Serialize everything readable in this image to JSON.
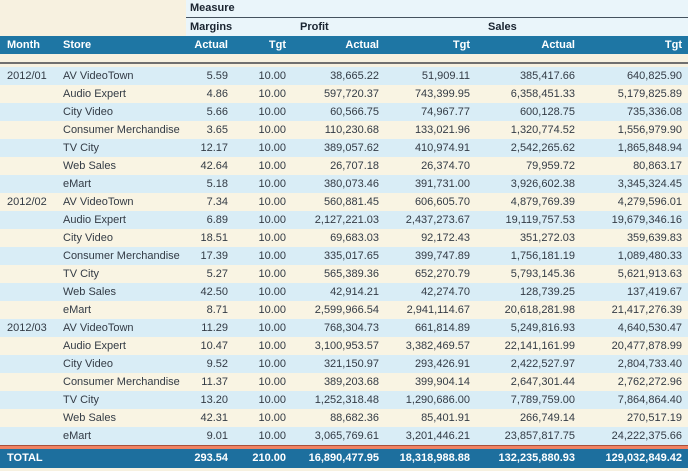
{
  "table": {
    "measure_label": "Measure",
    "group_headers": [
      "Margins",
      "Profit",
      "Sales"
    ],
    "column_headers": [
      "Month",
      "Store",
      "Actual",
      "Tgt",
      "Actual",
      "Tgt",
      "Actual",
      "Tgt"
    ],
    "rows": [
      {
        "month": "2012/01",
        "store": "AV VideoTown",
        "values": [
          "5.59",
          "10.00",
          "38,665.22",
          "51,909.11",
          "385,417.66",
          "640,825.90"
        ]
      },
      {
        "month": "",
        "store": "Audio Expert",
        "values": [
          "4.86",
          "10.00",
          "597,720.37",
          "743,399.95",
          "6,358,451.33",
          "5,179,825.89"
        ]
      },
      {
        "month": "",
        "store": "City Video",
        "values": [
          "5.66",
          "10.00",
          "60,566.75",
          "74,967.77",
          "600,128.75",
          "735,336.08"
        ]
      },
      {
        "month": "",
        "store": "Consumer Merchandise",
        "values": [
          "3.65",
          "10.00",
          "110,230.68",
          "133,021.96",
          "1,320,774.52",
          "1,556,979.90"
        ]
      },
      {
        "month": "",
        "store": "TV City",
        "values": [
          "12.17",
          "10.00",
          "389,057.62",
          "410,974.91",
          "2,542,265.62",
          "1,865,848.94"
        ]
      },
      {
        "month": "",
        "store": "Web Sales",
        "values": [
          "42.64",
          "10.00",
          "26,707.18",
          "26,374.70",
          "79,959.72",
          "80,863.17"
        ]
      },
      {
        "month": "",
        "store": "eMart",
        "values": [
          "5.18",
          "10.00",
          "380,073.46",
          "391,731.00",
          "3,926,602.38",
          "3,345,324.45"
        ]
      },
      {
        "month": "2012/02",
        "store": "AV VideoTown",
        "values": [
          "7.34",
          "10.00",
          "560,881.45",
          "606,605.70",
          "4,879,769.39",
          "4,279,596.01"
        ]
      },
      {
        "month": "",
        "store": "Audio Expert",
        "values": [
          "6.89",
          "10.00",
          "2,127,221.03",
          "2,437,273.67",
          "19,119,757.53",
          "19,679,346.16"
        ]
      },
      {
        "month": "",
        "store": "City Video",
        "values": [
          "18.51",
          "10.00",
          "69,683.03",
          "92,172.43",
          "351,272.03",
          "359,639.83"
        ]
      },
      {
        "month": "",
        "store": "Consumer Merchandise",
        "values": [
          "17.39",
          "10.00",
          "335,017.65",
          "399,747.89",
          "1,756,181.19",
          "1,089,480.33"
        ]
      },
      {
        "month": "",
        "store": "TV City",
        "values": [
          "5.27",
          "10.00",
          "565,389.36",
          "652,270.79",
          "5,793,145.36",
          "5,621,913.63"
        ]
      },
      {
        "month": "",
        "store": "Web Sales",
        "values": [
          "42.50",
          "10.00",
          "42,914.21",
          "42,274.70",
          "128,739.25",
          "137,419.67"
        ]
      },
      {
        "month": "",
        "store": "eMart",
        "values": [
          "8.71",
          "10.00",
          "2,599,966.54",
          "2,941,114.67",
          "20,618,281.98",
          "21,417,276.39"
        ]
      },
      {
        "month": "2012/03",
        "store": "AV VideoTown",
        "values": [
          "11.29",
          "10.00",
          "768,304.73",
          "661,814.89",
          "5,249,816.93",
          "4,640,530.47"
        ]
      },
      {
        "month": "",
        "store": "Audio Expert",
        "values": [
          "10.47",
          "10.00",
          "3,100,953.57",
          "3,382,469.57",
          "22,141,161.99",
          "20,477,878.99"
        ]
      },
      {
        "month": "",
        "store": "City Video",
        "values": [
          "9.52",
          "10.00",
          "321,150.97",
          "293,426.91",
          "2,422,527.97",
          "2,804,733.40"
        ]
      },
      {
        "month": "",
        "store": "Consumer Merchandise",
        "values": [
          "11.37",
          "10.00",
          "389,203.68",
          "399,904.14",
          "2,647,301.44",
          "2,762,272.96"
        ]
      },
      {
        "month": "",
        "store": "TV City",
        "values": [
          "13.20",
          "10.00",
          "1,252,318.48",
          "1,290,686.00",
          "7,789,759.00",
          "7,864,864.40"
        ]
      },
      {
        "month": "",
        "store": "Web Sales",
        "values": [
          "42.31",
          "10.00",
          "88,682.36",
          "85,401.91",
          "266,749.14",
          "270,517.19"
        ]
      },
      {
        "month": "",
        "store": "eMart",
        "values": [
          "9.01",
          "10.00",
          "3,065,769.61",
          "3,201,446.21",
          "23,857,817.75",
          "24,222,375.66"
        ]
      }
    ],
    "total": {
      "label": "TOTAL",
      "values": [
        "293.54",
        "210.00",
        "16,890,477.95",
        "18,318,988.88",
        "132,235,880.93",
        "129,032,849.42"
      ]
    }
  },
  "colors": {
    "page_background": "#f7f1e0",
    "header_light": "#eaf5fa",
    "header_bar": "#1e76a4",
    "total_bar": "#1d6f9e",
    "row_alt_blue": "#d9edf6",
    "row_cream": "#f9f4e3",
    "accent_orange": "#ef8262"
  }
}
